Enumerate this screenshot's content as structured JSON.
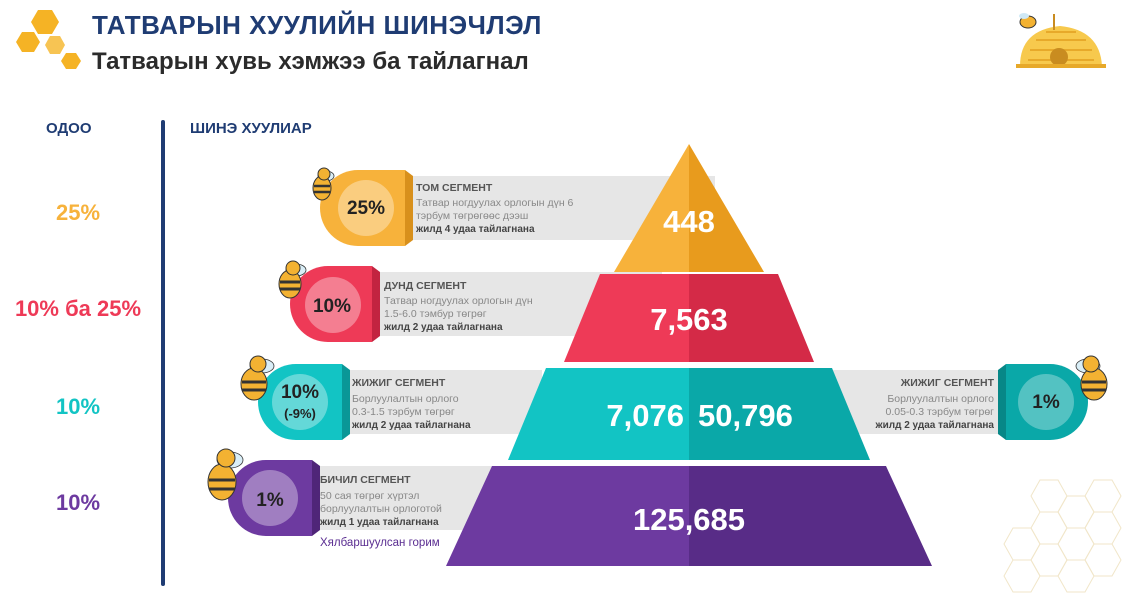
{
  "header": {
    "title": "ТАТВАРЫН ХУУЛИЙН ШИНЭЧЛЭЛ",
    "subtitle": "Татварын хувь хэмжээ ба тайлагнал"
  },
  "columns": {
    "current": "ОДОО",
    "new": "ШИНЭ ХУУЛИАР"
  },
  "current_rates": [
    "25%",
    "10% ба 25%",
    "10%",
    "10%"
  ],
  "segments": [
    {
      "title": "ТОМ СЕГМЕНТ",
      "desc1": "Татвар ногдуулах орлогын дүн 6",
      "desc2": "тэрбум төгрөгөөс дээш",
      "freq": "жилд 4 удаа тайлагнана",
      "pct": "25%",
      "count": "448"
    },
    {
      "title": "ДУНД СЕГМЕНТ",
      "desc1": "Татвар ногдуулах орлогын дүн",
      "desc2": "1.5-6.0 тэмбур төгрөг",
      "freq": "жилд 2 удаа тайлагнана",
      "pct": "10%",
      "count": "7,563"
    },
    {
      "title": "ЖИЖИГ СЕГМЕНТ",
      "desc1": "Борлуулалтын орлого",
      "desc2": "0.3-1.5 тэрбум төгрөг",
      "freq": "жилд 2 удаа тайлагнана",
      "pct": "10%",
      "pct2": "(-9%)",
      "count": "7,076"
    },
    {
      "title": "БИЧИЛ СЕГМЕНТ",
      "desc1": "50 сая төгрөг хүртэл",
      "desc2": "борлуулалтын орлоготой",
      "freq": "жилд 1 удаа тайлагнана",
      "pct": "1%",
      "count": "125,685",
      "note": "Хялбаршуулсан горим"
    }
  ],
  "right_segment": {
    "title": "ЖИЖИГ СЕГМЕНТ",
    "desc1": "Борлуулалтын орлого",
    "desc2": "0.05-0.3 тэрбум төгрөг",
    "freq": "жилд 2 удаа тайлагнана",
    "pct": "1%",
    "count": "50,796"
  },
  "colors": {
    "navy": "#1f3c73",
    "orange": "#f7b23b",
    "red": "#ee3a57",
    "teal": "#12c4c4",
    "purple": "#6d3aa0",
    "hex": "#f5b325"
  },
  "icons": [
    "hexagon-icon",
    "bee-icon",
    "beehive-logo-icon"
  ]
}
